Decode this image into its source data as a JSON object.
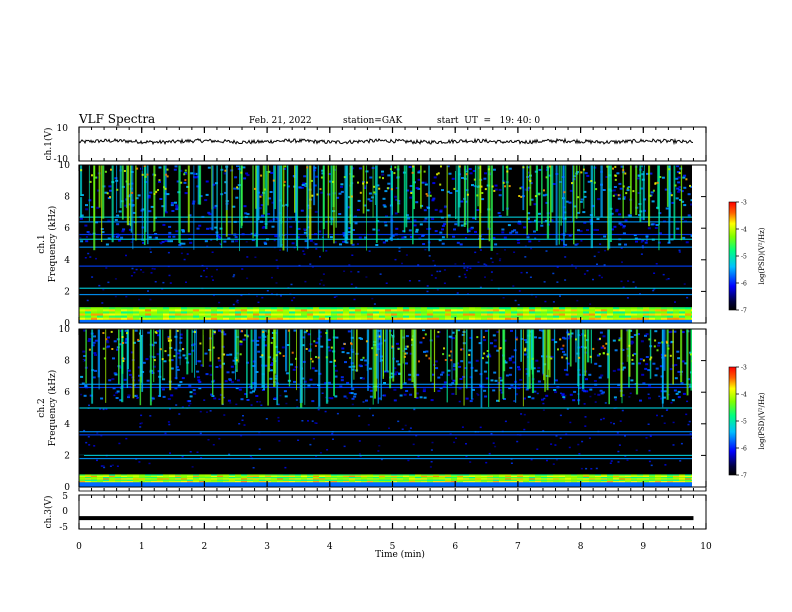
{
  "header": {
    "title": "VLF Spectra",
    "date": "Feb. 21, 2022",
    "station": "station=GAK",
    "start": "start  UT  =   19: 40: 0"
  },
  "chart_data": [
    {
      "type": "line",
      "name": "ch1-waveform",
      "ylabel": "ch.1(V)",
      "ylim": [
        -10,
        10
      ],
      "yticks": [
        "10",
        "-10"
      ],
      "xlim": [
        0,
        10
      ],
      "trace_level": 1.5,
      "trace_extent": [
        0,
        9.8
      ]
    },
    {
      "type": "heatmap",
      "name": "ch1-spectrogram",
      "ylabel": [
        "ch.1",
        "Frequency (kHz)"
      ],
      "ylim": [
        0,
        10
      ],
      "yticks": [
        "0",
        "2",
        "4",
        "6",
        "8",
        "10"
      ],
      "xlim": [
        0,
        10
      ],
      "colorbar": {
        "label": "log(PSD)(V²/Hz)",
        "range": [
          -7,
          -3
        ],
        "ticks": [
          "-3",
          "-4",
          "-5",
          "-6",
          "-7"
        ]
      },
      "strong_band_khz": [
        0.2,
        1.0
      ],
      "active_above_khz": 5.5,
      "line_freqs_khz": [
        0.5,
        1.8,
        2.2,
        3.6,
        4.8,
        5.3,
        5.6,
        6.4,
        6.7
      ]
    },
    {
      "type": "heatmap",
      "name": "ch2-spectrogram",
      "ylabel": [
        "ch.2",
        "Frequency (kHz)"
      ],
      "ylim": [
        0,
        10
      ],
      "yticks": [
        "0",
        "2",
        "4",
        "6",
        "8",
        "10"
      ],
      "xlim": [
        0,
        10
      ],
      "colorbar": {
        "label": "log(PSD)(V²/Hz)",
        "range": [
          -7,
          -3
        ],
        "ticks": [
          "-3",
          "-4",
          "-5",
          "-6",
          "-7"
        ]
      },
      "strong_band_khz": [
        0.3,
        0.8
      ],
      "active_above_khz": 6.0,
      "line_freqs_khz": [
        0.6,
        1.8,
        2.0,
        3.3,
        3.5,
        5.0,
        6.3,
        6.5
      ]
    },
    {
      "type": "line",
      "name": "ch3-waveform",
      "ylabel": "ch.3(V)",
      "ylim": [
        -5,
        5
      ],
      "yticks": [
        "5",
        "0",
        "-5"
      ],
      "xlim": [
        0,
        10
      ],
      "trace_level": -1.8,
      "trace_extent": [
        0,
        9.8
      ]
    }
  ],
  "xaxis": {
    "label": "Time (min)",
    "ticks": [
      "0",
      "1",
      "2",
      "3",
      "4",
      "5",
      "6",
      "7",
      "8",
      "9",
      "10"
    ]
  }
}
